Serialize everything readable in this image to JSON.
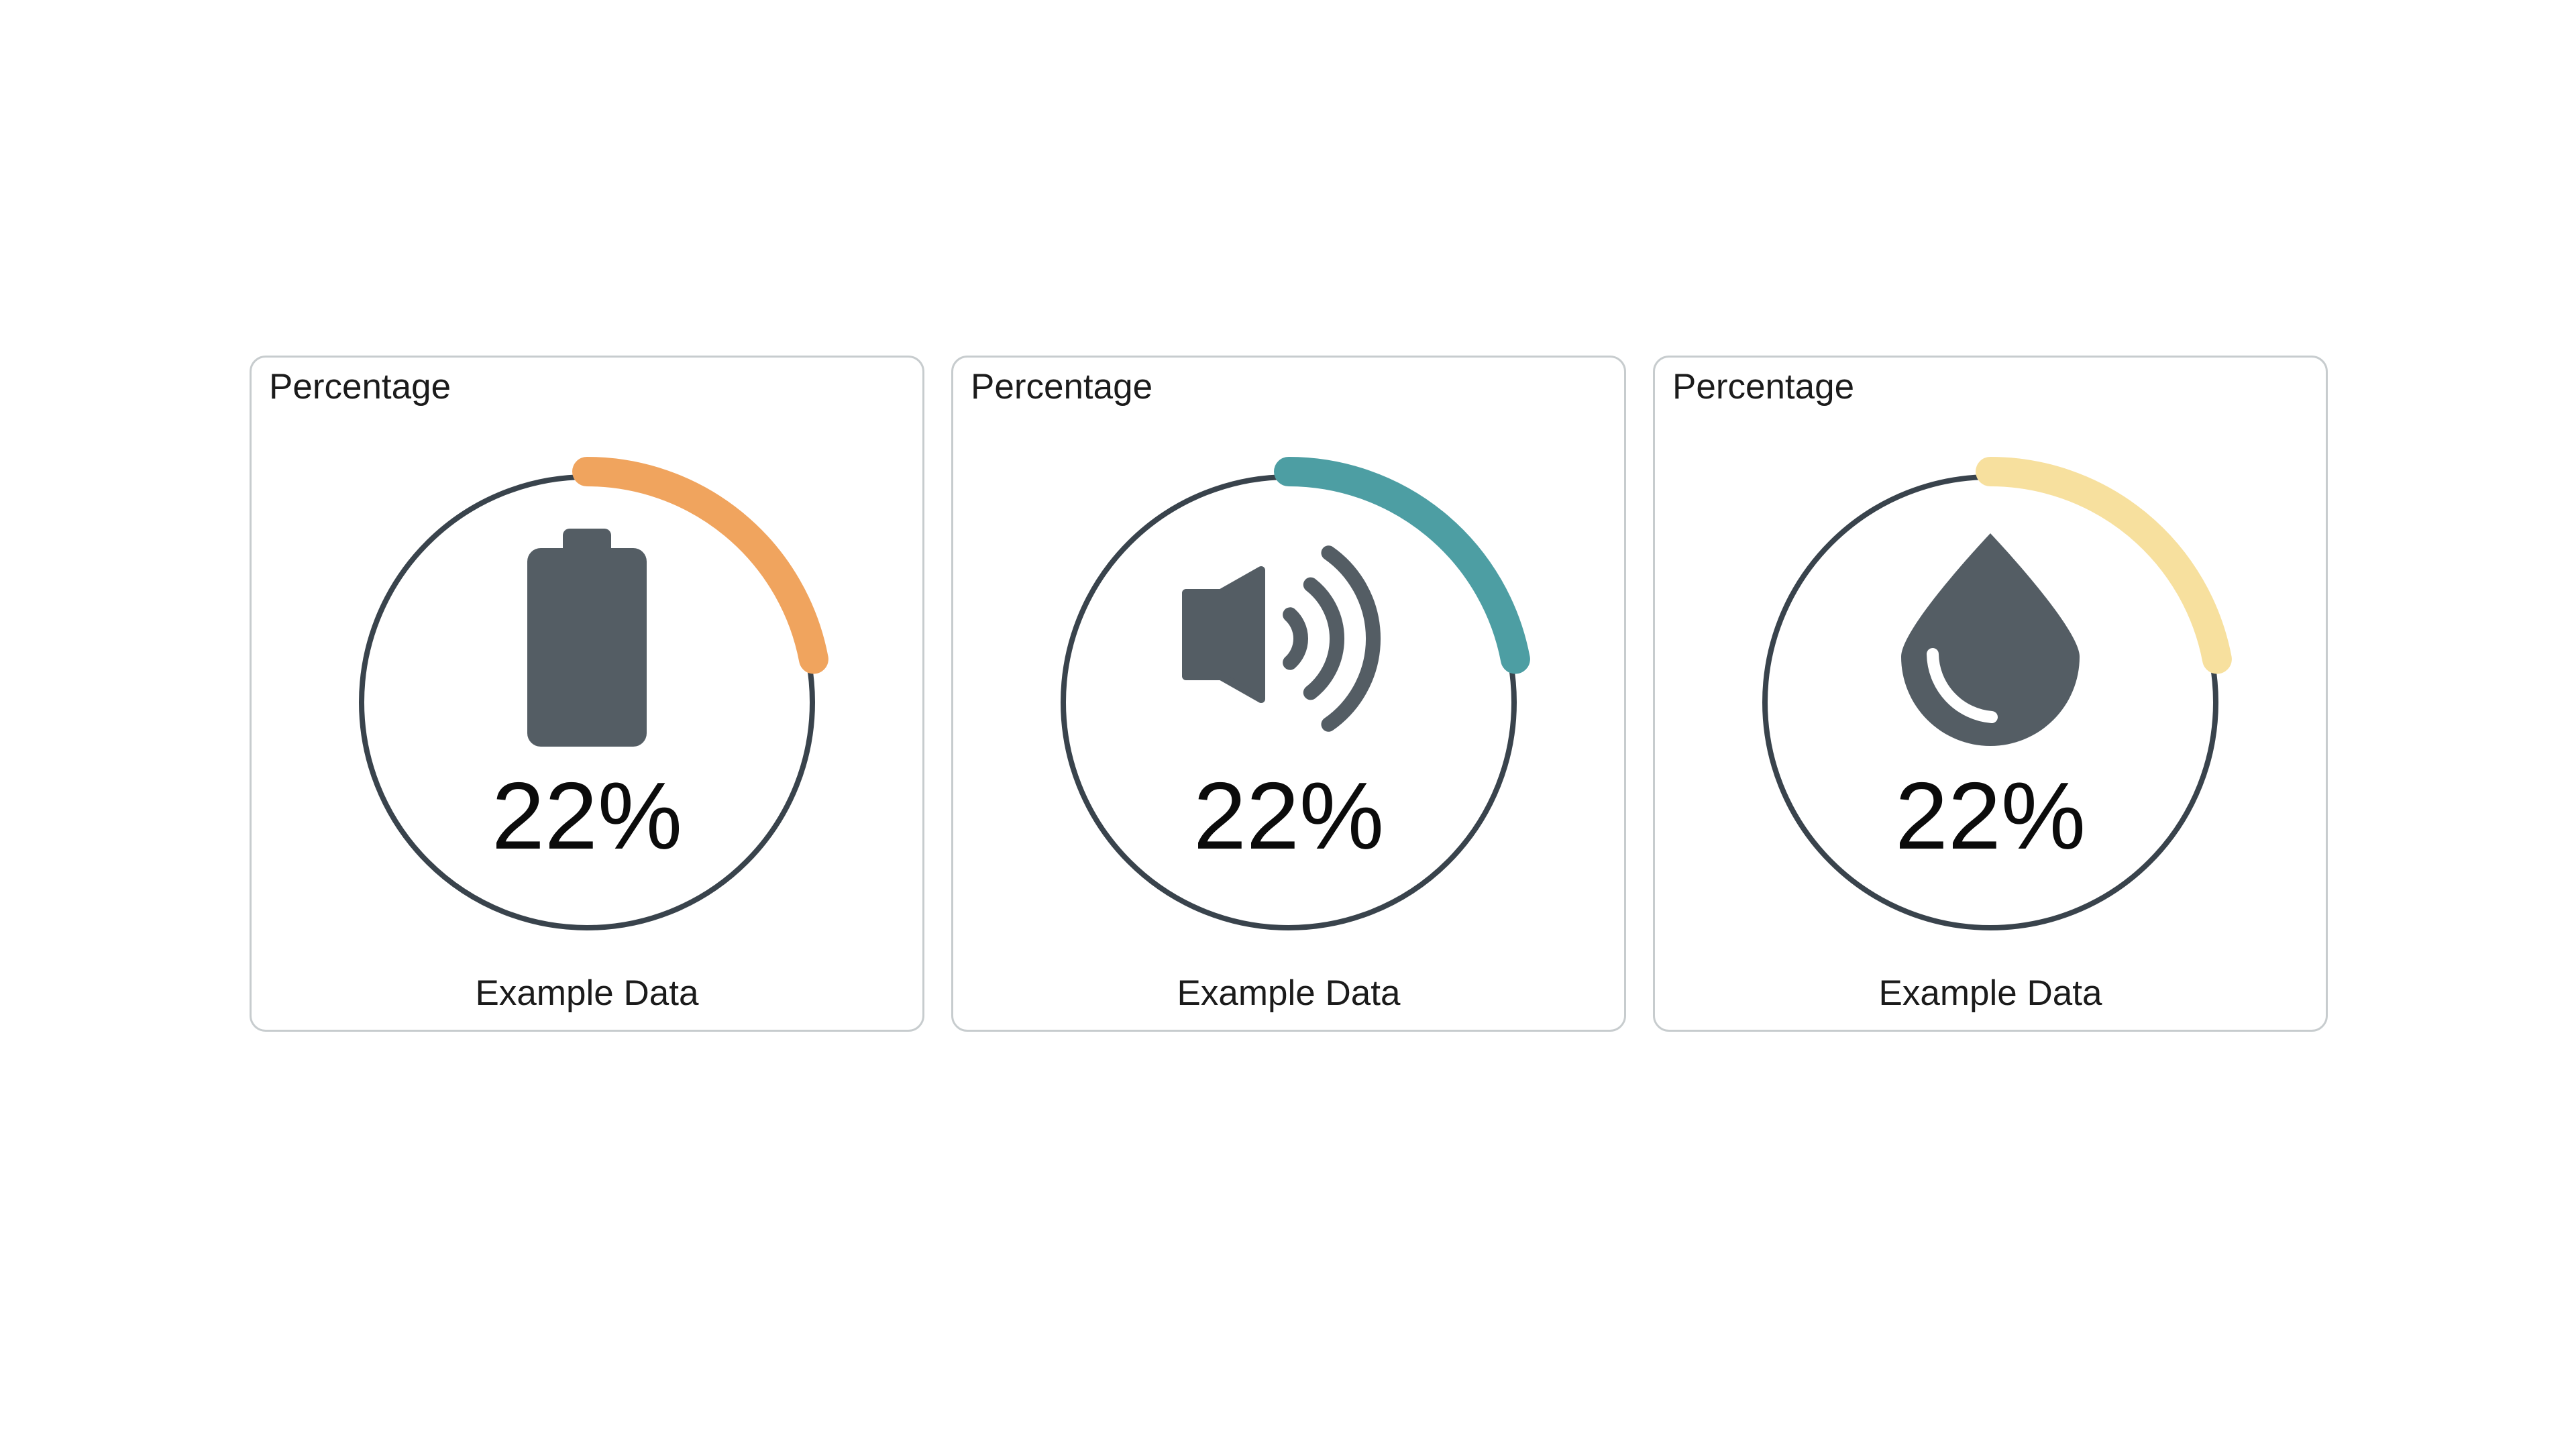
{
  "colors": {
    "page_background": "#ffffff",
    "card_border": "#c7ccce",
    "ring": "#39434c",
    "icon": "#545d64",
    "droplet_highlight": "#ffffff",
    "title_text": "#1b1b1b",
    "value_text": "#0b0b0b"
  },
  "cards": [
    {
      "title": "Percentage",
      "icon": "battery-icon",
      "value_percent": 22,
      "value_label": "22%",
      "footer": "Example Data",
      "accent_color": "#f0a45e"
    },
    {
      "title": "Percentage",
      "icon": "volume-icon",
      "value_percent": 22,
      "value_label": "22%",
      "footer": "Example Data",
      "accent_color": "#4d9ea3"
    },
    {
      "title": "Percentage",
      "icon": "droplet-icon",
      "value_percent": 22,
      "value_label": "22%",
      "footer": "Example Data",
      "accent_color": "#f7e09e"
    }
  ],
  "chart_data": [
    {
      "type": "gauge",
      "title": "Percentage",
      "value": 22,
      "min": 0,
      "max": 100,
      "unit": "%",
      "center_label": "22%",
      "series_label": "Example Data",
      "icon": "battery",
      "arc_color": "#f0a45e",
      "arc_start": "top",
      "arc_direction": "clockwise"
    },
    {
      "type": "gauge",
      "title": "Percentage",
      "value": 22,
      "min": 0,
      "max": 100,
      "unit": "%",
      "center_label": "22%",
      "series_label": "Example Data",
      "icon": "volume",
      "arc_color": "#4d9ea3",
      "arc_start": "top",
      "arc_direction": "clockwise"
    },
    {
      "type": "gauge",
      "title": "Percentage",
      "value": 22,
      "min": 0,
      "max": 100,
      "unit": "%",
      "center_label": "22%",
      "series_label": "Example Data",
      "icon": "droplet",
      "arc_color": "#f7e09e",
      "arc_start": "top",
      "arc_direction": "clockwise"
    }
  ]
}
